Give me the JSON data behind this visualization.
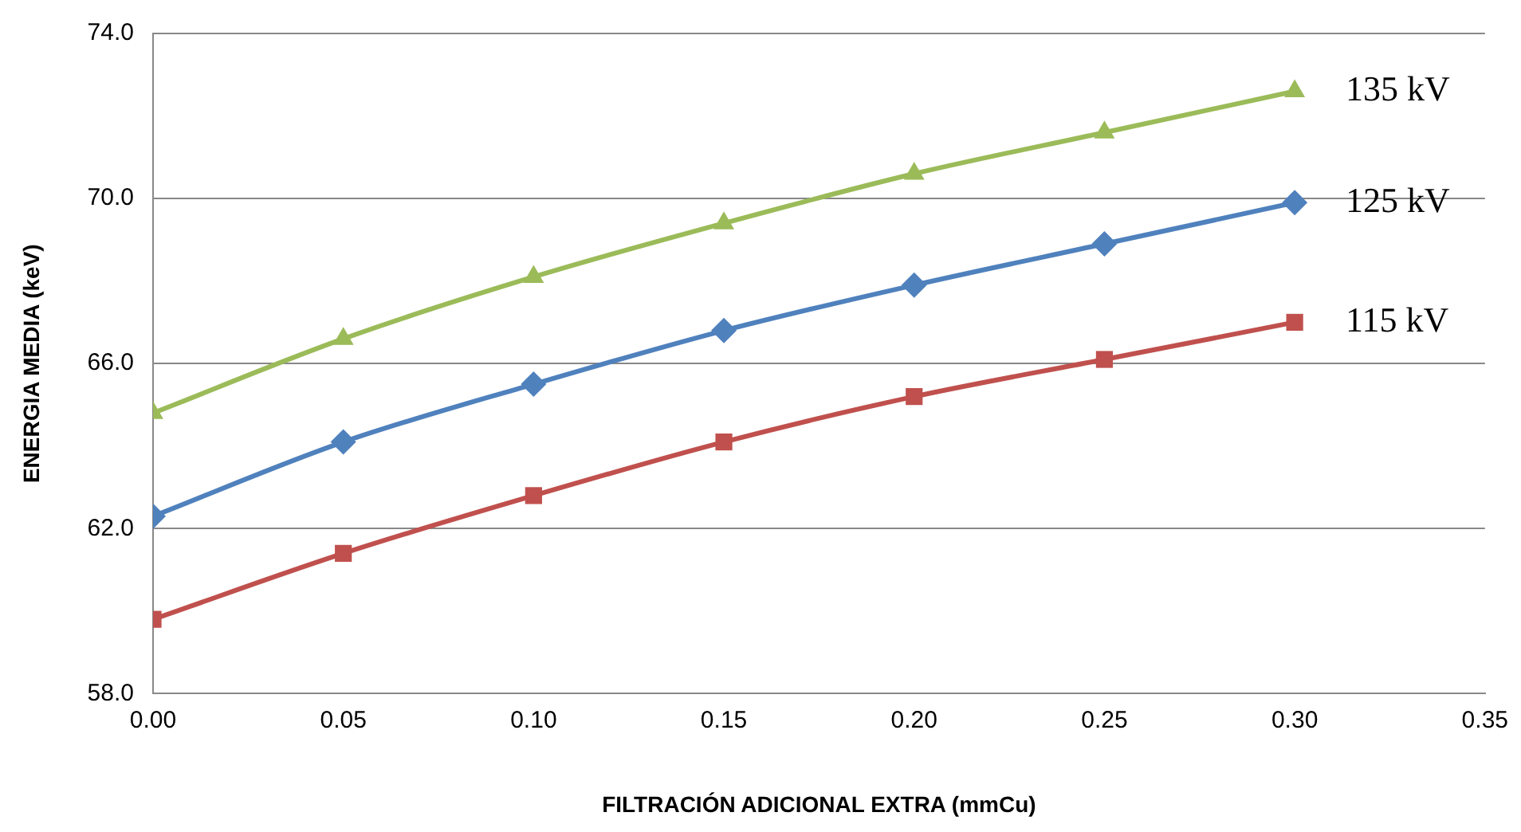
{
  "chart_data": {
    "type": "line",
    "xlabel": "FILTRACIÓN ADICIONAL EXTRA (mmCu)",
    "ylabel": "ENERGIA MEDIA (keV)",
    "x": [
      0,
      0.05,
      0.1,
      0.15,
      0.2,
      0.25,
      0.3
    ],
    "series": [
      {
        "name": "135 kV",
        "color": "#9bbb59",
        "marker": "triangle",
        "values": [
          64.8,
          66.6,
          68.1,
          69.4,
          70.6,
          71.6,
          72.6
        ]
      },
      {
        "name": "125 kV",
        "color": "#4f81bd",
        "marker": "diamond",
        "values": [
          62.3,
          64.1,
          65.5,
          66.8,
          67.9,
          68.9,
          69.9
        ]
      },
      {
        "name": "115 kV",
        "color": "#c0504d",
        "marker": "square",
        "values": [
          59.8,
          61.4,
          62.8,
          64.1,
          65.2,
          66.1,
          67.0
        ]
      }
    ],
    "xlim": [
      0,
      0.35
    ],
    "xticks": [
      {
        "value": 0,
        "label": "0.00"
      },
      {
        "value": 0.05,
        "label": "0.05"
      },
      {
        "value": 0.1,
        "label": "0.10"
      },
      {
        "value": 0.15,
        "label": "0.15"
      },
      {
        "value": 0.2,
        "label": "0.20"
      },
      {
        "value": 0.25,
        "label": "0.25"
      },
      {
        "value": 0.3,
        "label": "0.30"
      },
      {
        "value": 0.35,
        "label": "0.35"
      }
    ],
    "ylim": [
      58,
      74
    ],
    "yticks": [
      {
        "value": 58,
        "label": "58.0"
      },
      {
        "value": 62,
        "label": "62.0"
      },
      {
        "value": 66,
        "label": "66.0"
      },
      {
        "value": 70,
        "label": "70.0"
      },
      {
        "value": 74,
        "label": "74.0"
      }
    ],
    "grid": "y",
    "legend": false,
    "line_style": "solid"
  }
}
